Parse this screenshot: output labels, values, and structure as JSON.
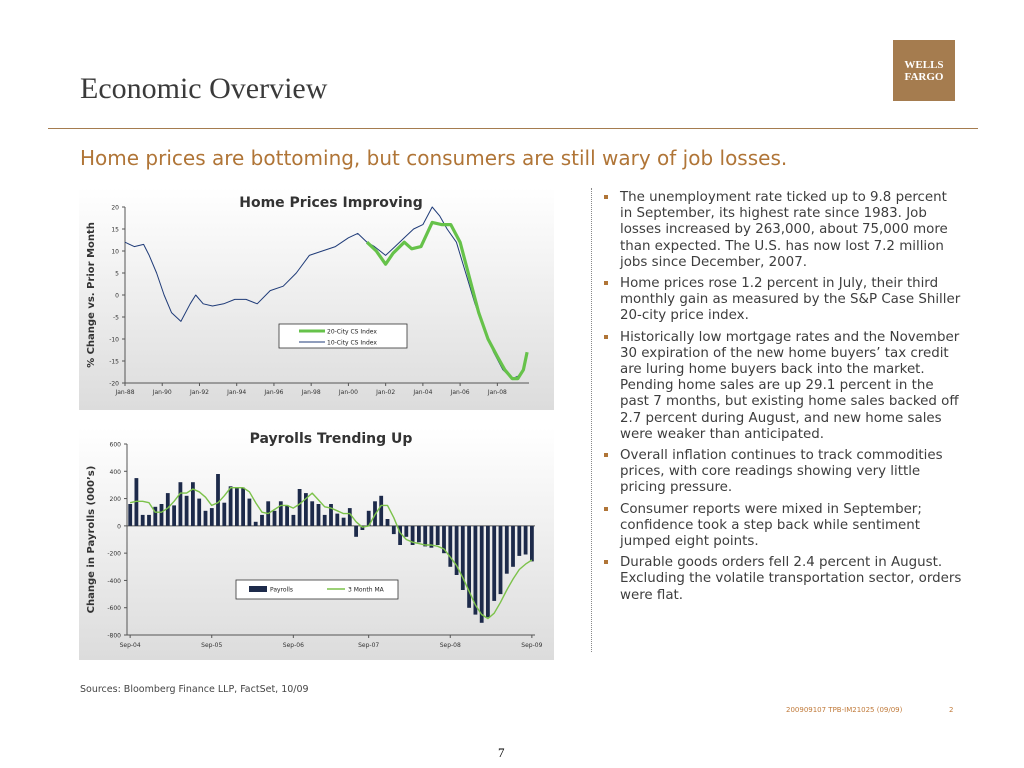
{
  "header": {
    "title": "Economic Overview",
    "logo_line1": "WELLS",
    "logo_line2": "FARGO"
  },
  "subtitle": "Home prices are bottoming, but consumers are still wary of job losses.",
  "bullets": [
    "The unemployment rate ticked up to 9.8 percent in September, its highest rate since 1983.  Job losses increased by 263,000, about 75,000 more than expected.  The U.S. has now lost 7.2 million jobs since December, 2007.",
    "Home prices rose 1.2 percent in July, their third monthly gain as measured by the S&P Case Shiller 20-city price index.",
    "Historically low mortgage rates and the November 30 expiration of the new home buyers’ tax credit are luring home buyers back into the market.  Pending home sales are up 29.1 percent in the past 7 months, but existing home sales backed off 2.7 percent during August, and new home sales were weaker than anticipated.",
    "Overall inflation continues to track commodities prices, with core readings showing very little pricing pressure.",
    "Consumer reports were mixed in September; confidence took a step back while sentiment jumped eight points.",
    "Durable goods orders fell 2.4 percent in August.  Excluding the volatile transportation sector, orders were flat."
  ],
  "sources": "Sources: Bloomberg Finance LLP, FactSet, 10/09",
  "footer": {
    "code": "200909107 TPB-IM21025 (09/09)",
    "page": "2"
  },
  "page_number": "7",
  "colors": {
    "brand": "#a57c4f",
    "accent_text": "#b07537",
    "line_green": "#66c24a",
    "line_blue": "#1f3b78",
    "bar_navy": "#1d2a4a"
  },
  "chart_data": [
    {
      "type": "line",
      "title": "Home Prices Improving",
      "ylabel": "% Change vs. Prior Month",
      "xlabel": "",
      "ylim": [
        -20,
        20
      ],
      "yticks": [
        20,
        15,
        10,
        5,
        0,
        -5,
        -10,
        -15,
        -20
      ],
      "xtick_labels": [
        "Jan-88",
        "Jan-90",
        "Jan-92",
        "Jan-94",
        "Jan-96",
        "Jan-98",
        "Jan-00",
        "Jan-02",
        "Jan-04",
        "Jan-06",
        "Jan-08"
      ],
      "xlim": [
        1988.0,
        2009.7
      ],
      "legend_placement": "center",
      "series": [
        {
          "name": "20-City CS Index",
          "color": "#66c24a",
          "x": [
            2001.0,
            2001.5,
            2002.0,
            2002.4,
            2003.0,
            2003.4,
            2003.9,
            2004.5,
            2005.0,
            2005.5,
            2006.0,
            2006.5,
            2007.0,
            2007.5,
            2008.0,
            2008.4,
            2008.8,
            2009.1,
            2009.4,
            2009.6
          ],
          "values": [
            12,
            10,
            7,
            9.5,
            12,
            10.5,
            11,
            16.5,
            16,
            16,
            12,
            4,
            -4,
            -10,
            -14,
            -17,
            -19,
            -19,
            -17,
            -13
          ]
        },
        {
          "name": "10-City CS Index",
          "color": "#1f3b78",
          "x": [
            1988.0,
            1988.5,
            1989.0,
            1989.3,
            1989.7,
            1990.1,
            1990.5,
            1991.0,
            1991.5,
            1991.8,
            1992.2,
            1992.7,
            1993.3,
            1993.9,
            1994.5,
            1995.1,
            1995.8,
            1996.5,
            1997.2,
            1997.9,
            1998.6,
            1999.3,
            2000.0,
            2000.5,
            2001.0,
            2001.4,
            2002.0,
            2002.5,
            2003.0,
            2003.5,
            2004.0,
            2004.5,
            2004.9,
            2005.3,
            2005.8,
            2006.3,
            2006.8,
            2007.3,
            2007.8,
            2008.3,
            2008.8,
            2009.1,
            2009.4,
            2009.6
          ],
          "values": [
            12,
            11,
            11.5,
            9,
            5,
            0,
            -4,
            -6,
            -2,
            0,
            -2,
            -2.5,
            -2,
            -1,
            -1,
            -2,
            1,
            2,
            5,
            9,
            10,
            11,
            13,
            14,
            12,
            11,
            9,
            11,
            13,
            15,
            16,
            20,
            18,
            15,
            12,
            5,
            -2,
            -8,
            -13,
            -17,
            -19,
            -18.5,
            -17,
            -14
          ]
        }
      ]
    },
    {
      "type": "bar",
      "title": "Payrolls Trending Up",
      "ylabel": "Change in Payrolls (000’s)",
      "xlabel": "",
      "ylim": [
        -800,
        600
      ],
      "yticks": [
        600,
        400,
        200,
        0,
        -200,
        -400,
        -600,
        -800
      ],
      "xtick_labels": [
        "Sep-04",
        "Sep-05",
        "Sep-06",
        "Sep-07",
        "Sep-08",
        "Sep-09"
      ],
      "legend_placement": "bottom-center",
      "series": [
        {
          "name": "Payrolls",
          "color": "#1d2a4a",
          "values": [
            160,
            350,
            80,
            80,
            140,
            160,
            240,
            150,
            320,
            220,
            320,
            200,
            110,
            130,
            380,
            170,
            290,
            280,
            280,
            200,
            30,
            80,
            180,
            110,
            180,
            150,
            80,
            270,
            240,
            180,
            160,
            80,
            160,
            90,
            60,
            130,
            -80,
            -30,
            110,
            180,
            220,
            50,
            -60,
            -140,
            -80,
            -140,
            -120,
            -150,
            -160,
            -140,
            -200,
            -300,
            -360,
            -470,
            -600,
            -650,
            -710,
            -670,
            -550,
            -500,
            -350,
            -300,
            -220,
            -210,
            -260
          ]
        },
        {
          "name": "3 Month MA",
          "color": "#7cc24a",
          "values": [
            170,
            180,
            180,
            170,
            100,
            100,
            130,
            180,
            240,
            240,
            270,
            250,
            210,
            150,
            170,
            220,
            280,
            280,
            280,
            250,
            170,
            100,
            90,
            120,
            150,
            150,
            130,
            160,
            200,
            240,
            190,
            140,
            130,
            110,
            90,
            90,
            30,
            -10,
            0,
            80,
            150,
            150,
            60,
            -50,
            -100,
            -120,
            -130,
            -140,
            -140,
            -150,
            -170,
            -230,
            -290,
            -380,
            -480,
            -580,
            -650,
            -680,
            -640,
            -560,
            -470,
            -390,
            -320,
            -280,
            -250
          ]
        }
      ]
    }
  ]
}
